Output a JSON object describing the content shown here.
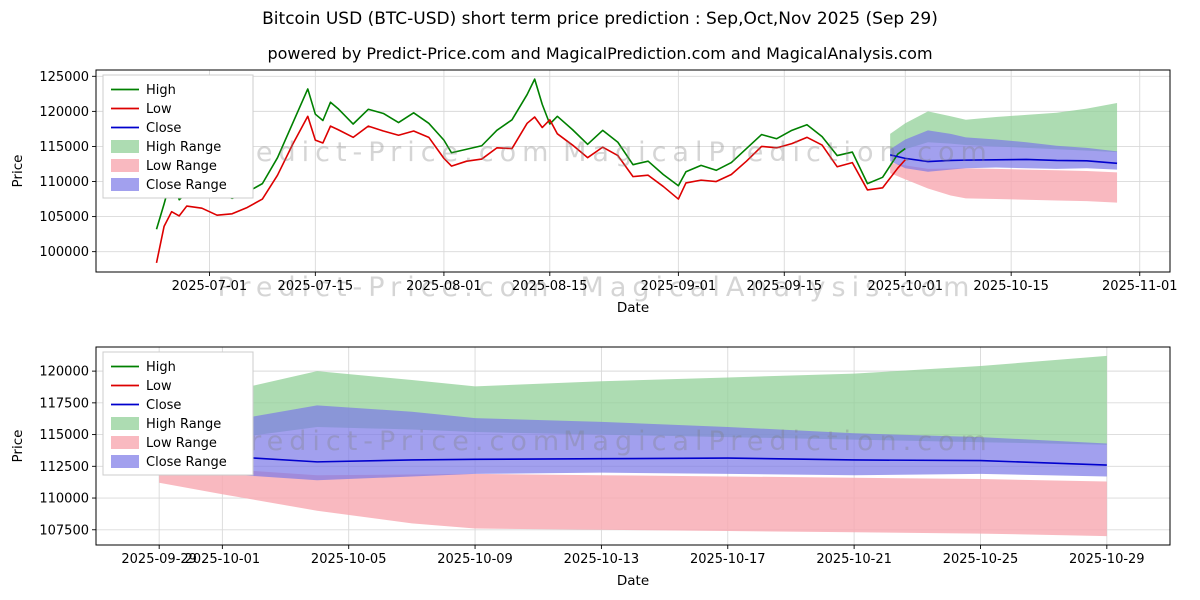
{
  "title": "Bitcoin USD (BTC-USD) short term price prediction : Sep,Oct,Nov 2025 (Sep 29)",
  "subtitle": "powered by Predict-Price.com and MagicalPrediction.com and MagicalAnalysis.com",
  "chart_data": [
    {
      "type": "line",
      "xlabel": "Date",
      "ylabel": "Price",
      "x_domain": [
        "2025-06-16",
        "2025-11-05"
      ],
      "y_domain": [
        97100,
        125900
      ],
      "x_ticks": [
        "2025-07-01",
        "2025-07-15",
        "2025-08-01",
        "2025-08-15",
        "2025-09-01",
        "2025-09-15",
        "2025-10-01",
        "2025-10-15",
        "2025-11-01"
      ],
      "y_ticks": [
        100000,
        105000,
        110000,
        115000,
        120000,
        125000
      ],
      "dates": [
        "2025-06-24",
        "2025-06-25",
        "2025-06-26",
        "2025-06-27",
        "2025-06-28",
        "2025-06-30",
        "2025-07-02",
        "2025-07-04",
        "2025-07-06",
        "2025-07-08",
        "2025-07-10",
        "2025-07-12",
        "2025-07-14",
        "2025-07-15",
        "2025-07-16",
        "2025-07-17",
        "2025-07-18",
        "2025-07-20",
        "2025-07-22",
        "2025-07-24",
        "2025-07-26",
        "2025-07-28",
        "2025-07-30",
        "2025-08-01",
        "2025-08-02",
        "2025-08-04",
        "2025-08-06",
        "2025-08-08",
        "2025-08-10",
        "2025-08-12",
        "2025-08-13",
        "2025-08-14",
        "2025-08-15",
        "2025-08-16",
        "2025-08-18",
        "2025-08-20",
        "2025-08-22",
        "2025-08-24",
        "2025-08-26",
        "2025-08-28",
        "2025-08-30",
        "2025-09-01",
        "2025-09-02",
        "2025-09-04",
        "2025-09-06",
        "2025-09-08",
        "2025-09-10",
        "2025-09-12",
        "2025-09-14",
        "2025-09-16",
        "2025-09-18",
        "2025-09-20",
        "2025-09-22",
        "2025-09-24",
        "2025-09-26",
        "2025-09-28",
        "2025-09-30",
        "2025-10-01"
      ],
      "series": [
        {
          "name": "High",
          "color": "#008000",
          "y": [
            103200,
            106800,
            110700,
            107400,
            108400,
            107900,
            108600,
            107600,
            108500,
            109700,
            113400,
            118300,
            123200,
            119600,
            118700,
            121300,
            120400,
            118200,
            120300,
            119700,
            118400,
            119800,
            118300,
            115900,
            114100,
            114600,
            115100,
            117300,
            118800,
            122400,
            124600,
            121000,
            118200,
            119300,
            117400,
            115300,
            117300,
            115600,
            112400,
            112900,
            111000,
            109400,
            111400,
            112300,
            111600,
            112700,
            114700,
            116700,
            116100,
            117300,
            118100,
            116400,
            113700,
            114200,
            109700,
            110600,
            113900,
            114700
          ]
        },
        {
          "name": "Low",
          "color": "#dd0000",
          "y": [
            98400,
            103600,
            105700,
            105100,
            106500,
            106200,
            105200,
            105400,
            106300,
            107500,
            110900,
            115300,
            119300,
            115900,
            115500,
            117900,
            117400,
            116300,
            117900,
            117200,
            116600,
            117200,
            116300,
            113300,
            112200,
            112900,
            113200,
            114800,
            114700,
            118300,
            119200,
            117700,
            118800,
            116800,
            115200,
            113400,
            114900,
            113700,
            110700,
            110900,
            109300,
            107500,
            109800,
            110200,
            110000,
            111000,
            112900,
            115000,
            114800,
            115400,
            116300,
            115200,
            112100,
            112700,
            108800,
            109100,
            111900,
            113100
          ]
        },
        {
          "name": "Close",
          "color": "#0000cd",
          "x": [
            "2025-09-29",
            "2025-10-01",
            "2025-10-04",
            "2025-10-07",
            "2025-10-09",
            "2025-10-13",
            "2025-10-17",
            "2025-10-21",
            "2025-10-25",
            "2025-10-29"
          ],
          "y": [
            113800,
            113300,
            112850,
            113000,
            113050,
            113100,
            113150,
            113000,
            112950,
            112600
          ]
        }
      ],
      "bands": [
        {
          "name": "High Range",
          "color": "rgba(146,208,152,0.75)",
          "x": [
            "2025-09-29",
            "2025-10-01",
            "2025-10-04",
            "2025-10-07",
            "2025-10-09",
            "2025-10-13",
            "2025-10-17",
            "2025-10-21",
            "2025-10-25",
            "2025-10-29"
          ],
          "upper": [
            116800,
            118300,
            120000,
            119300,
            118800,
            119200,
            119500,
            119800,
            120400,
            121200
          ],
          "lower": [
            113400,
            114600,
            115600,
            115400,
            115200,
            115000,
            114800,
            114600,
            114400,
            114200
          ]
        },
        {
          "name": "Low Range",
          "color": "rgba(247,168,176,0.8)",
          "x": [
            "2025-09-29",
            "2025-10-01",
            "2025-10-04",
            "2025-10-07",
            "2025-10-09",
            "2025-10-13",
            "2025-10-17",
            "2025-10-21",
            "2025-10-25",
            "2025-10-29"
          ],
          "upper": [
            112700,
            112300,
            111800,
            111850,
            111900,
            111800,
            111700,
            111600,
            111500,
            111300
          ],
          "lower": [
            111200,
            110300,
            109000,
            108000,
            107600,
            107500,
            107400,
            107300,
            107200,
            107000
          ]
        },
        {
          "name": "Close Range",
          "color": "rgba(122,119,231,0.7)",
          "x": [
            "2025-09-29",
            "2025-10-01",
            "2025-10-04",
            "2025-10-07",
            "2025-10-09",
            "2025-10-13",
            "2025-10-17",
            "2025-10-21",
            "2025-10-25",
            "2025-10-29"
          ],
          "upper": [
            114600,
            116000,
            117300,
            116800,
            116300,
            116000,
            115600,
            115100,
            114800,
            114300
          ],
          "lower": [
            112900,
            111900,
            111400,
            111700,
            111900,
            112000,
            111900,
            111800,
            111900,
            111700
          ]
        }
      ],
      "legend": [
        {
          "label": "High",
          "type": "line",
          "color": "#008000"
        },
        {
          "label": "Low",
          "type": "line",
          "color": "#dd0000"
        },
        {
          "label": "Close",
          "type": "line",
          "color": "#0000cd"
        },
        {
          "label": "High Range",
          "type": "patch",
          "color": "rgba(146,208,152,0.75)"
        },
        {
          "label": "Low Range",
          "type": "patch",
          "color": "rgba(247,168,176,0.8)"
        },
        {
          "label": "Close Range",
          "type": "patch",
          "color": "rgba(122,119,231,0.7)"
        }
      ],
      "watermarks": [
        {
          "text": "Predict-Price.com",
          "x": 0.27,
          "y": 0.45
        },
        {
          "text": "MagicalPrediction.com",
          "x": 0.635,
          "y": 0.45
        },
        {
          "text": "Predict-Price.com",
          "x": 0.27,
          "y": 1.12
        },
        {
          "text": "MagicalAnalysis.com",
          "x": 0.635,
          "y": 1.12
        }
      ]
    },
    {
      "type": "line",
      "xlabel": "Date",
      "ylabel": "Price",
      "x_domain": [
        "2025-09-27",
        "2025-10-31"
      ],
      "y_domain": [
        106300,
        121900
      ],
      "x_ticks": [
        "2025-09-29",
        "2025-10-01",
        "2025-10-05",
        "2025-10-09",
        "2025-10-13",
        "2025-10-17",
        "2025-10-21",
        "2025-10-25",
        "2025-10-29"
      ],
      "y_ticks": [
        107500,
        110000,
        112500,
        115000,
        117500,
        120000
      ],
      "dates": [
        "2025-09-29",
        "2025-10-01",
        "2025-10-04",
        "2025-10-07",
        "2025-10-09",
        "2025-10-13",
        "2025-10-17",
        "2025-10-21",
        "2025-10-25",
        "2025-10-29"
      ],
      "series": [
        {
          "name": "Close",
          "color": "#0000cd",
          "y": [
            113800,
            113300,
            112850,
            113000,
            113050,
            113100,
            113150,
            113000,
            112950,
            112600
          ]
        }
      ],
      "bands": [
        {
          "name": "High Range",
          "color": "rgba(146,208,152,0.75)",
          "upper": [
            116800,
            118300,
            120000,
            119300,
            118800,
            119200,
            119500,
            119800,
            120400,
            121200
          ],
          "lower": [
            113400,
            114600,
            115600,
            115400,
            115200,
            115000,
            114800,
            114600,
            114400,
            114200
          ]
        },
        {
          "name": "Low Range",
          "color": "rgba(247,168,176,0.8)",
          "upper": [
            112700,
            112300,
            111800,
            111850,
            111900,
            111800,
            111700,
            111600,
            111500,
            111300
          ],
          "lower": [
            111200,
            110300,
            109000,
            108000,
            107600,
            107500,
            107400,
            107300,
            107200,
            107000
          ]
        },
        {
          "name": "Close Range",
          "color": "rgba(122,119,231,0.7)",
          "upper": [
            114600,
            116000,
            117300,
            116800,
            116300,
            116000,
            115600,
            115100,
            114800,
            114300
          ],
          "lower": [
            112900,
            111900,
            111400,
            111700,
            111900,
            112000,
            111900,
            111800,
            111900,
            111700
          ]
        }
      ],
      "legend": [
        {
          "label": "High",
          "type": "line",
          "color": "#008000"
        },
        {
          "label": "Low",
          "type": "line",
          "color": "#dd0000"
        },
        {
          "label": "Close",
          "type": "line",
          "color": "#0000cd"
        },
        {
          "label": "High Range",
          "type": "patch",
          "color": "rgba(146,208,152,0.75)"
        },
        {
          "label": "Low Range",
          "type": "patch",
          "color": "rgba(247,168,176,0.8)"
        },
        {
          "label": "Close Range",
          "type": "patch",
          "color": "rgba(122,119,231,0.7)"
        }
      ],
      "watermarks": [
        {
          "text": "Predict-Price.com",
          "x": 0.28,
          "y": 0.52
        },
        {
          "text": "MagicalPrediction.com",
          "x": 0.635,
          "y": 0.52
        }
      ]
    }
  ]
}
